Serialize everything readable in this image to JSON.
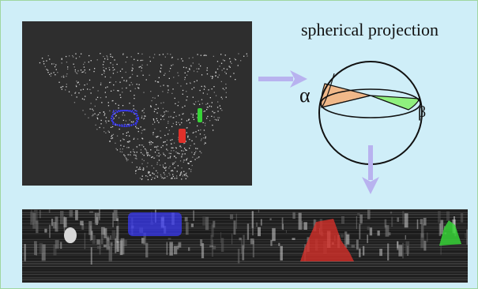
{
  "labels": {
    "title": "spherical projection",
    "alpha": "α",
    "beta": "β"
  },
  "colors": {
    "background": "#cfeef8",
    "frame_border": "#9fd6a0",
    "arrow": "#b8b2ef",
    "alpha_wedge": "#f0b889",
    "beta_wedge": "#8ff07e",
    "car_blue": "#3a3aff",
    "pedestrian_red": "#e0302a",
    "cyclist_green": "#37d437",
    "cloud_panel": "#2e2e2e",
    "panorama_panel": "#141414"
  },
  "icons": [
    "arrow-right-icon",
    "arrow-down-icon",
    "sphere-icon"
  ]
}
